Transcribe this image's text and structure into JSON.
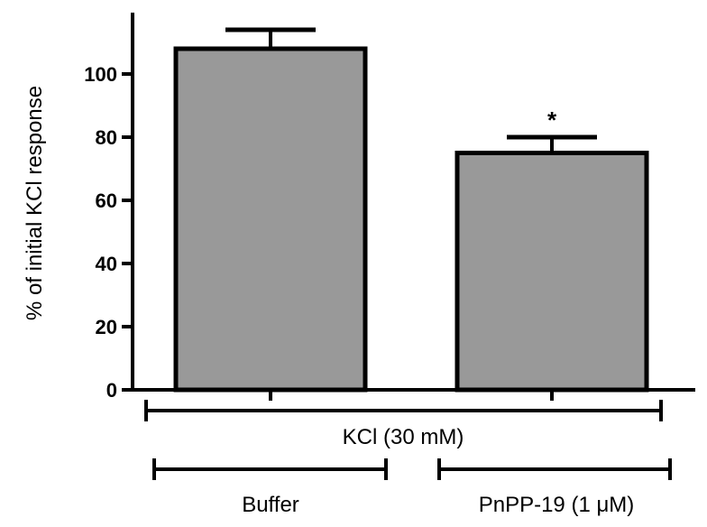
{
  "chart_data": {
    "type": "bar",
    "title": "",
    "xlabel": "",
    "ylabel": "% of initial KCl response",
    "ylim": [
      0,
      115
    ],
    "yticks": [
      0,
      20,
      40,
      60,
      80,
      100
    ],
    "categories": [
      "Buffer",
      "PnPP-19  (1 μM)"
    ],
    "values": [
      108,
      75
    ],
    "errors": [
      6,
      5
    ],
    "significance": [
      "",
      "*"
    ],
    "group_label": "KCl (30 mM)",
    "colors": {
      "bar_fill": "#999999",
      "stroke": "#000000"
    }
  }
}
